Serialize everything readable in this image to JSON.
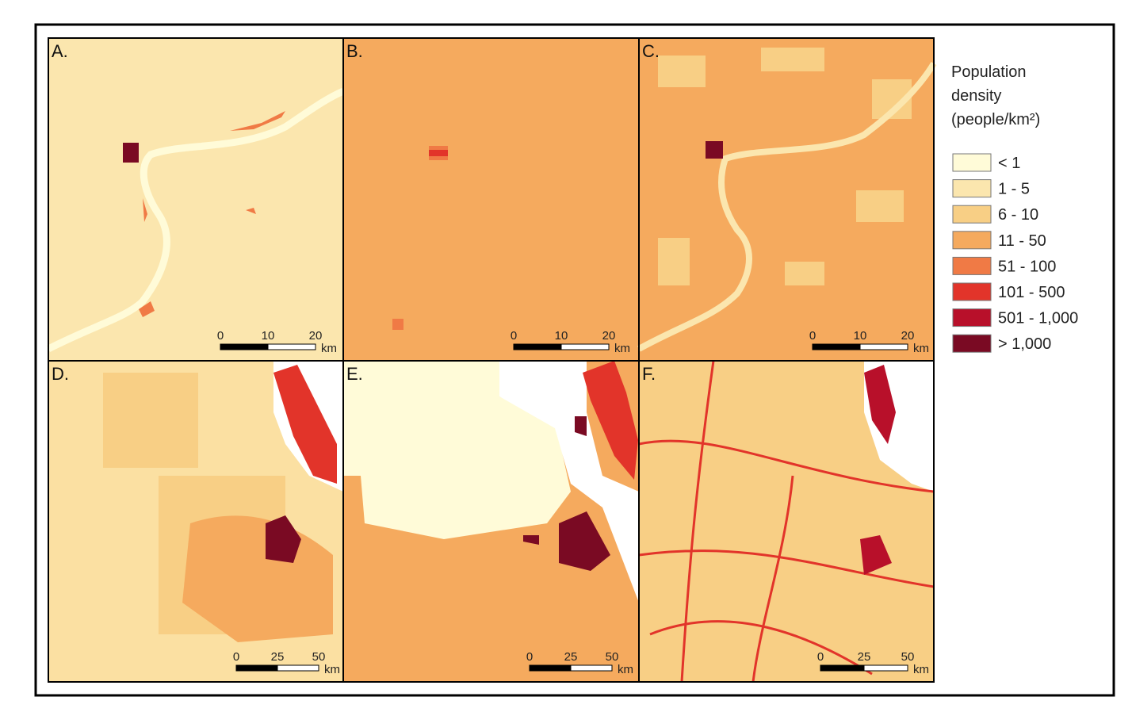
{
  "panels": [
    {
      "label": "A.",
      "scale": {
        "ticks": [
          "0",
          "10",
          "20"
        ],
        "unit": "km"
      }
    },
    {
      "label": "B.",
      "scale": {
        "ticks": [
          "0",
          "10",
          "20"
        ],
        "unit": "km"
      }
    },
    {
      "label": "C.",
      "scale": {
        "ticks": [
          "0",
          "10",
          "20"
        ],
        "unit": "km"
      }
    },
    {
      "label": "D.",
      "scale": {
        "ticks": [
          "0",
          "25",
          "50"
        ],
        "unit": "km"
      }
    },
    {
      "label": "E.",
      "scale": {
        "ticks": [
          "0",
          "25",
          "50"
        ],
        "unit": "km"
      }
    },
    {
      "label": "F.",
      "scale": {
        "ticks": [
          "0",
          "25",
          "50"
        ],
        "unit": "km"
      }
    }
  ],
  "legend": {
    "title": [
      "Population",
      "density",
      "(people/km²)"
    ],
    "items": [
      {
        "label": "< 1",
        "color": "#fffbd8"
      },
      {
        "label": "1 - 5",
        "color": "#fbe6ae"
      },
      {
        "label": "6 - 10",
        "color": "#f8cf85"
      },
      {
        "label": "11 - 50",
        "color": "#f5aa5e"
      },
      {
        "label": "51 - 100",
        "color": "#f07a45"
      },
      {
        "label": "101 - 500",
        "color": "#e2342a"
      },
      {
        "label": "501 - 1,000",
        "color": "#b8102a"
      },
      {
        "label": "> 1,000",
        "color": "#7a0a23"
      }
    ]
  }
}
